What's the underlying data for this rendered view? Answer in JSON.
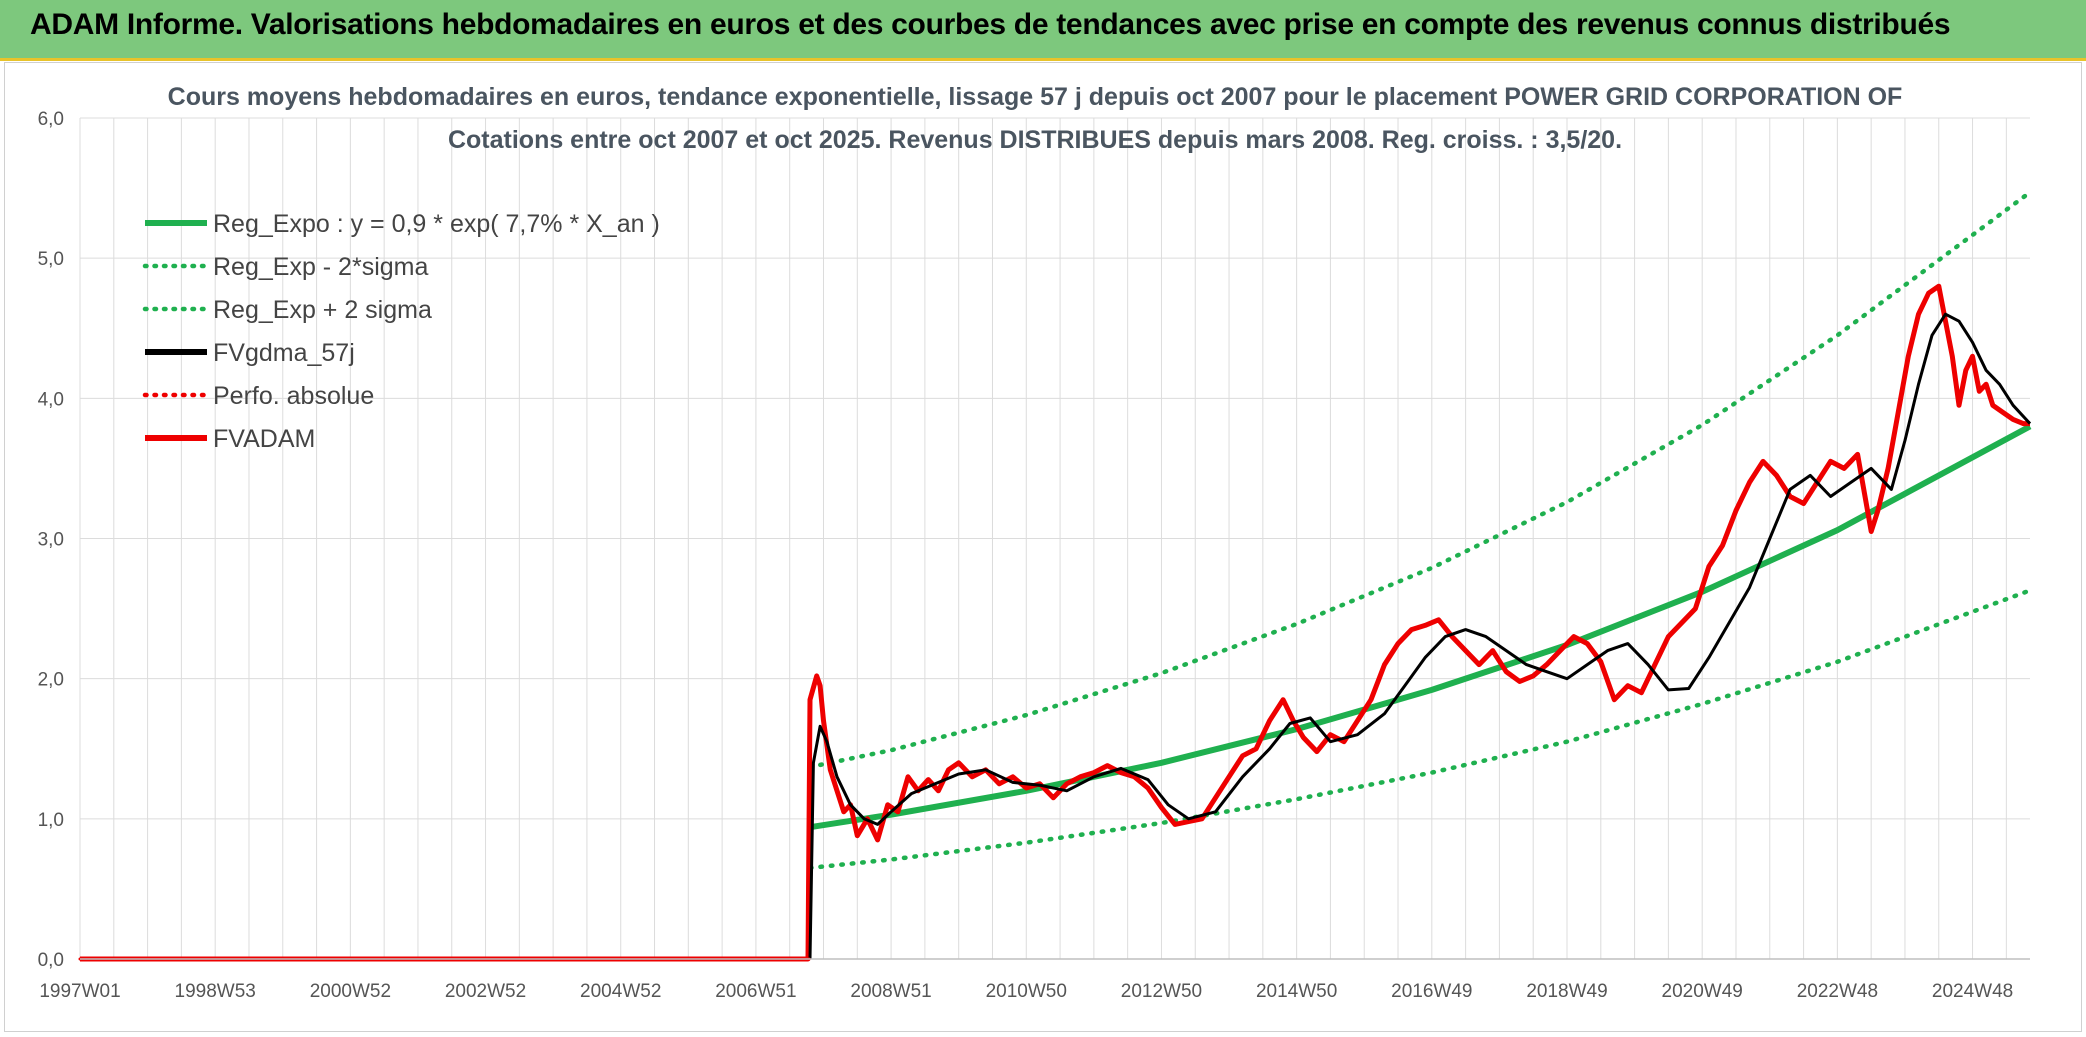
{
  "banner": {
    "title": "ADAM Informe. Valorisations hebdomadaires en euros et des courbes de tendances avec prise en compte des revenus connus distribués"
  },
  "colors": {
    "banner": "#7dc87d",
    "banner_border": "#e8c32a",
    "green": "#1fb04f",
    "red": "#ee0000",
    "black": "#000000",
    "grid": "#dcdcdc"
  },
  "chart_data": {
    "type": "line",
    "title": "Cours moyens hebdomadaires en euros, tendance exponentielle, lissage 57 j depuis oct 2007 pour le placement POWER GRID CORPORATION OF",
    "subtitle": "Cotations entre oct 2007 et oct 2025. Revenus DISTRIBUES depuis mars 2008. Reg. croiss. : 3,5/20.",
    "xlabel": "",
    "ylabel": "",
    "x_range": [
      1997.0,
      2025.85
    ],
    "ylim": [
      0,
      6
    ],
    "y_ticks": [
      "0,0",
      "1,0",
      "2,0",
      "3,0",
      "4,0",
      "5,0",
      "6,0"
    ],
    "x_tick_labels": [
      "1997W01",
      "1998W53",
      "2000W52",
      "2002W52",
      "2004W52",
      "2006W51",
      "2008W51",
      "2010W50",
      "2012W50",
      "2014W50",
      "2016W49",
      "2018W49",
      "2020W49",
      "2022W48",
      "2024W48"
    ],
    "x_tick_values": [
      1997.0,
      1999.0,
      2001.0,
      2003.0,
      2005.0,
      2007.0,
      2009.0,
      2011.0,
      2013.0,
      2015.0,
      2017.0,
      2019.0,
      2021.0,
      2023.0,
      2025.0
    ],
    "grid": true,
    "legend_position": "top-left",
    "legend": [
      {
        "label": "Reg_Expo : y = 0,9 * exp( 7,7% *  X_an )",
        "style": "solid",
        "color": "#1fb04f"
      },
      {
        "label": "Reg_Exp - 2*sigma",
        "style": "dotted",
        "color": "#1fb04f"
      },
      {
        "label": "Reg_Exp + 2 sigma",
        "style": "dotted",
        "color": "#1fb04f"
      },
      {
        "label": "FVgdma_57j",
        "style": "solid",
        "color": "#000000"
      },
      {
        "label": "Perfo. absolue",
        "style": "dotted",
        "color": "#ee0000"
      },
      {
        "label": "FVADAM",
        "style": "solid",
        "color": "#ee0000"
      }
    ],
    "series": [
      {
        "name": "Reg_Expo : y = 0,9 * exp( 7,7% *  X_an )",
        "x": [
          2007.8,
          2009.0,
          2011.0,
          2013.0,
          2015.0,
          2017.0,
          2019.0,
          2021.0,
          2023.0,
          2025.85
        ],
        "values": [
          0.94,
          1.03,
          1.2,
          1.4,
          1.64,
          1.92,
          2.24,
          2.62,
          3.06,
          3.8
        ]
      },
      {
        "name": "Reg_Exp - 2*sigma",
        "x": [
          2007.8,
          2009.0,
          2011.0,
          2013.0,
          2015.0,
          2017.0,
          2019.0,
          2021.0,
          2023.0,
          2025.85
        ],
        "values": [
          0.65,
          0.71,
          0.83,
          0.97,
          1.14,
          1.33,
          1.55,
          1.82,
          2.12,
          2.63
        ]
      },
      {
        "name": "Reg_Exp + 2 sigma",
        "x": [
          2007.8,
          2009.0,
          2011.0,
          2013.0,
          2015.0,
          2017.0,
          2019.0,
          2021.0,
          2023.0,
          2025.85
        ],
        "values": [
          1.37,
          1.49,
          1.74,
          2.04,
          2.39,
          2.79,
          3.26,
          3.81,
          4.45,
          5.47
        ]
      },
      {
        "name": "FVgdma_57j",
        "x": [
          2007.8,
          2007.85,
          2007.95,
          2008.05,
          2008.2,
          2008.4,
          2008.6,
          2008.8,
          2009.0,
          2009.3,
          2009.6,
          2010.0,
          2010.4,
          2010.8,
          2011.2,
          2011.6,
          2012.0,
          2012.4,
          2012.8,
          2013.1,
          2013.4,
          2013.8,
          2014.2,
          2014.6,
          2014.9,
          2015.2,
          2015.5,
          2015.9,
          2016.3,
          2016.6,
          2016.9,
          2017.2,
          2017.5,
          2017.8,
          2018.1,
          2018.4,
          2018.7,
          2019.0,
          2019.3,
          2019.6,
          2019.9,
          2020.2,
          2020.5,
          2020.8,
          2021.1,
          2021.4,
          2021.7,
          2022.0,
          2022.3,
          2022.6,
          2022.9,
          2023.2,
          2023.5,
          2023.8,
          2024.0,
          2024.2,
          2024.4,
          2024.6,
          2024.8,
          2025.0,
          2025.2,
          2025.4,
          2025.6,
          2025.85
        ],
        "values": [
          0.0,
          1.4,
          1.66,
          1.55,
          1.3,
          1.1,
          1.0,
          0.96,
          1.05,
          1.18,
          1.24,
          1.32,
          1.35,
          1.26,
          1.24,
          1.2,
          1.3,
          1.36,
          1.28,
          1.1,
          1.0,
          1.05,
          1.3,
          1.5,
          1.68,
          1.72,
          1.55,
          1.6,
          1.75,
          1.95,
          2.15,
          2.3,
          2.35,
          2.3,
          2.2,
          2.1,
          2.05,
          2.0,
          2.1,
          2.2,
          2.25,
          2.1,
          1.92,
          1.93,
          2.15,
          2.4,
          2.65,
          3.0,
          3.35,
          3.45,
          3.3,
          3.4,
          3.5,
          3.35,
          3.7,
          4.1,
          4.45,
          4.6,
          4.55,
          4.4,
          4.2,
          4.1,
          3.95,
          3.82
        ]
      },
      {
        "name": "Perfo. absolue",
        "x": [
          1997.0,
          2007.8
        ],
        "values": [
          0.0,
          0.0
        ]
      },
      {
        "name": "FVADAM",
        "x": [
          1997.0,
          2007.77,
          2007.8,
          2007.9,
          2007.95,
          2008.0,
          2008.1,
          2008.2,
          2008.3,
          2008.4,
          2008.5,
          2008.65,
          2008.8,
          2008.95,
          2009.1,
          2009.25,
          2009.4,
          2009.55,
          2009.7,
          2009.85,
          2010.0,
          2010.2,
          2010.4,
          2010.6,
          2010.8,
          2011.0,
          2011.2,
          2011.4,
          2011.6,
          2011.8,
          2012.0,
          2012.2,
          2012.4,
          2012.6,
          2012.8,
          2013.0,
          2013.2,
          2013.4,
          2013.6,
          2013.8,
          2014.0,
          2014.2,
          2014.4,
          2014.6,
          2014.8,
          2014.95,
          2015.1,
          2015.3,
          2015.5,
          2015.7,
          2015.9,
          2016.1,
          2016.3,
          2016.5,
          2016.7,
          2016.9,
          2017.1,
          2017.3,
          2017.5,
          2017.7,
          2017.9,
          2018.1,
          2018.3,
          2018.5,
          2018.7,
          2018.9,
          2019.1,
          2019.3,
          2019.5,
          2019.7,
          2019.9,
          2020.1,
          2020.3,
          2020.5,
          2020.7,
          2020.9,
          2021.1,
          2021.3,
          2021.5,
          2021.7,
          2021.9,
          2022.1,
          2022.3,
          2022.5,
          2022.7,
          2022.9,
          2023.1,
          2023.3,
          2023.5,
          2023.6,
          2023.75,
          2023.9,
          2024.05,
          2024.2,
          2024.35,
          2024.5,
          2024.6,
          2024.7,
          2024.8,
          2024.9,
          2025.0,
          2025.1,
          2025.2,
          2025.3,
          2025.45,
          2025.6,
          2025.75,
          2025.85
        ],
        "values": [
          0.0,
          0.0,
          1.85,
          2.02,
          1.95,
          1.7,
          1.35,
          1.2,
          1.05,
          1.1,
          0.88,
          1.0,
          0.85,
          1.1,
          1.05,
          1.3,
          1.2,
          1.28,
          1.2,
          1.35,
          1.4,
          1.3,
          1.35,
          1.25,
          1.3,
          1.22,
          1.25,
          1.15,
          1.25,
          1.3,
          1.33,
          1.38,
          1.33,
          1.3,
          1.22,
          1.08,
          0.96,
          0.98,
          1.0,
          1.15,
          1.3,
          1.45,
          1.5,
          1.7,
          1.85,
          1.7,
          1.58,
          1.48,
          1.6,
          1.55,
          1.7,
          1.85,
          2.1,
          2.25,
          2.35,
          2.38,
          2.42,
          2.3,
          2.2,
          2.1,
          2.2,
          2.05,
          1.98,
          2.02,
          2.1,
          2.2,
          2.3,
          2.25,
          2.12,
          1.85,
          1.95,
          1.9,
          2.1,
          2.3,
          2.4,
          2.5,
          2.8,
          2.95,
          3.2,
          3.4,
          3.55,
          3.45,
          3.3,
          3.25,
          3.4,
          3.55,
          3.5,
          3.6,
          3.05,
          3.2,
          3.5,
          3.9,
          4.3,
          4.6,
          4.75,
          4.8,
          4.55,
          4.3,
          3.95,
          4.2,
          4.3,
          4.05,
          4.1,
          3.95,
          3.9,
          3.85,
          3.82,
          3.82
        ]
      }
    ]
  }
}
